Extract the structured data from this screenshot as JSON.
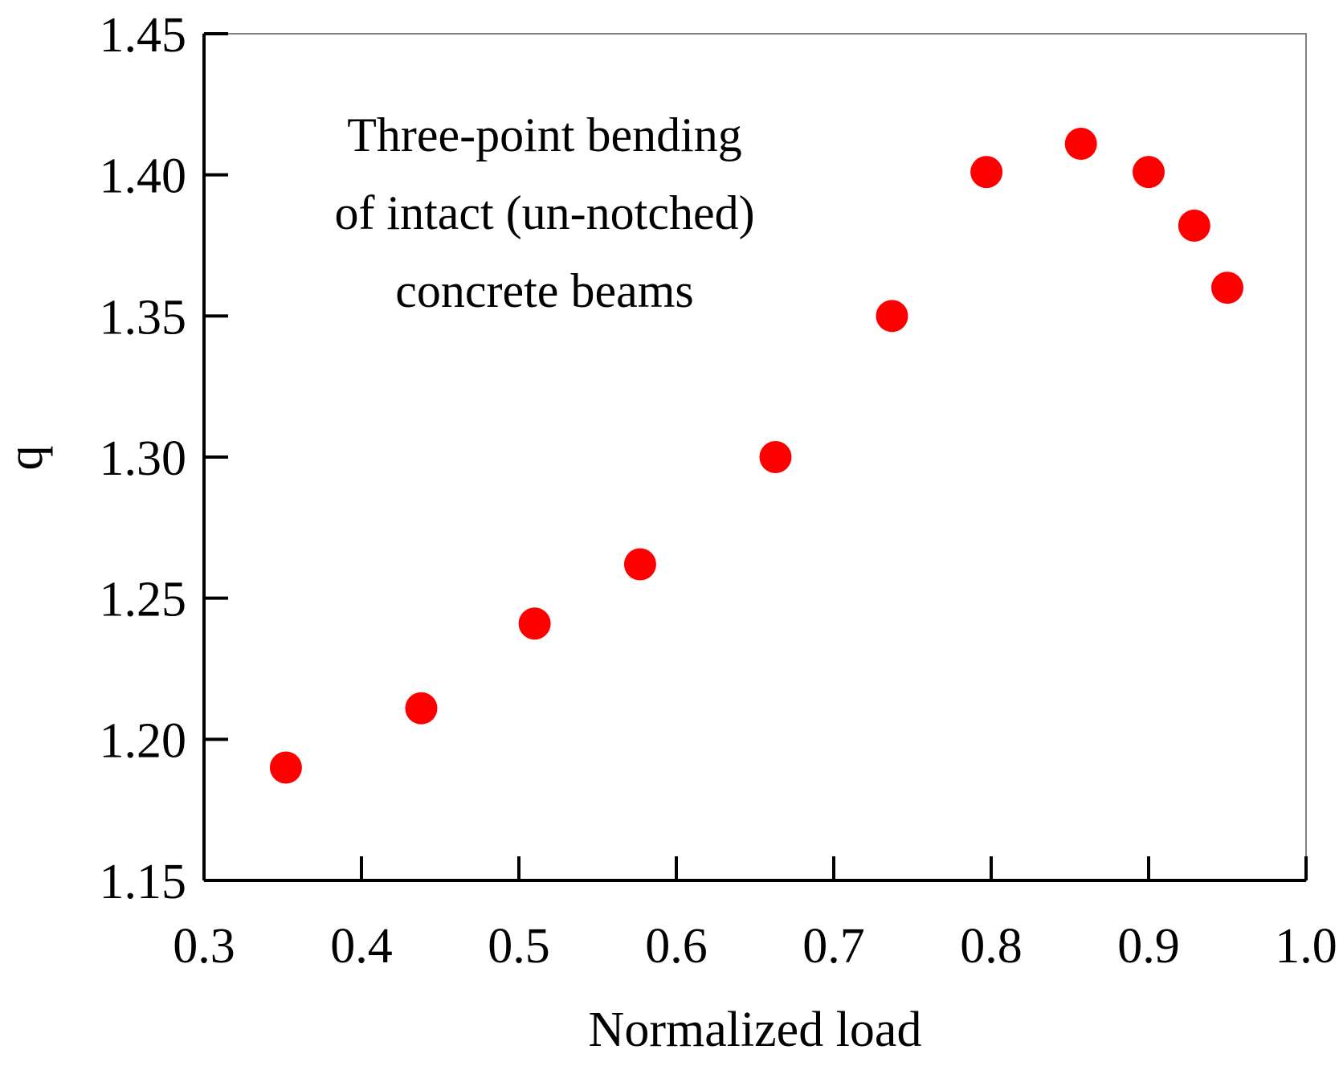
{
  "chart_data": {
    "type": "scatter",
    "xlabel": "Normalized load",
    "ylabel": "q",
    "xlim": [
      0.3,
      1.0
    ],
    "ylim": [
      1.15,
      1.45
    ],
    "xticks": [
      "0.3",
      "0.4",
      "0.5",
      "0.6",
      "0.7",
      "0.8",
      "0.9",
      "1.0"
    ],
    "yticks": [
      "1.15",
      "1.20",
      "1.25",
      "1.30",
      "1.35",
      "1.40",
      "1.45"
    ],
    "annotation": [
      "Three-point bending",
      "of intact (un-notched)",
      "concrete beams"
    ],
    "grid": false,
    "marker_color": "#ff0000",
    "series": [
      {
        "name": "q",
        "x": [
          0.352,
          0.438,
          0.51,
          0.577,
          0.663,
          0.737,
          0.797,
          0.857,
          0.9,
          0.929,
          0.95
        ],
        "y": [
          1.19,
          1.211,
          1.241,
          1.262,
          1.3,
          1.35,
          1.401,
          1.411,
          1.401,
          1.382,
          1.36
        ]
      }
    ]
  }
}
